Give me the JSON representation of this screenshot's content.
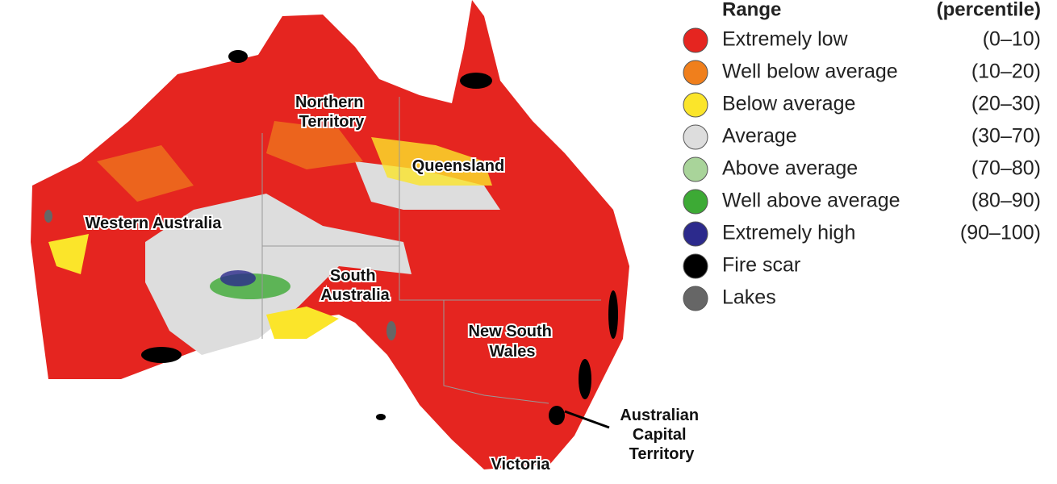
{
  "legend": {
    "title": "Range",
    "unit": "(percentile)",
    "items": [
      {
        "label": "Extremely low",
        "range": "(0–10)",
        "color": "#e52520"
      },
      {
        "label": "Well below average",
        "range": "(10–20)",
        "color": "#f07f1c"
      },
      {
        "label": "Below average",
        "range": "(20–30)",
        "color": "#fbe52a"
      },
      {
        "label": "Average",
        "range": "(30–70)",
        "color": "#dddddd"
      },
      {
        "label": "Above average",
        "range": "(70–80)",
        "color": "#a9d49a"
      },
      {
        "label": "Well above average",
        "range": "(80–90)",
        "color": "#3daa35"
      },
      {
        "label": "Extremely high",
        "range": "(90–100)",
        "color": "#2c2a8c"
      },
      {
        "label": "Fire scar",
        "color": "#000000"
      },
      {
        "label": "Lakes",
        "color": "#666666"
      }
    ]
  },
  "regions": [
    {
      "lines": [
        "Northern",
        "Territory"
      ]
    },
    {
      "lines": [
        "Queensland"
      ]
    },
    {
      "lines": [
        "Western Australia"
      ]
    },
    {
      "lines": [
        "South",
        "Australia"
      ]
    },
    {
      "lines": [
        "New South",
        "Wales"
      ]
    },
    {
      "lines": [
        "Australian",
        "Capital",
        "Territory"
      ]
    },
    {
      "lines": [
        "Victoria"
      ]
    }
  ]
}
